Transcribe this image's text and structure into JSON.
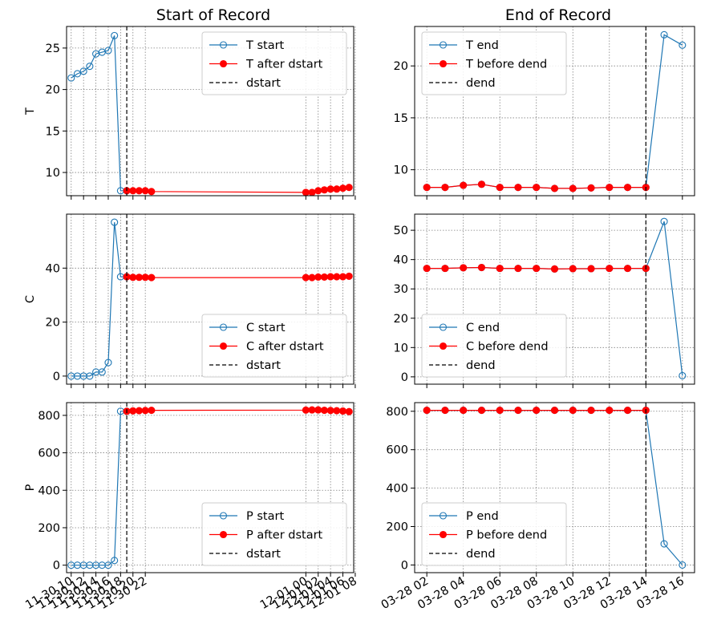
{
  "figure": {
    "col_titles": [
      "Start of Record",
      "End of Record"
    ]
  },
  "chart_data": [
    {
      "type": "line",
      "title": "Start of Record",
      "ylabel": "T",
      "xlabel": "",
      "x_kind": "start",
      "ylim": [
        7.2,
        27.6
      ],
      "yticks": [
        10,
        15,
        20,
        25
      ],
      "grid": true,
      "legend_position": "upper-right",
      "vline": {
        "x": "11-30 19:00",
        "label": "dstart"
      },
      "series": [
        {
          "name": "T start",
          "style": "open-blue",
          "x": [
            "11-30 10:00",
            "11-30 11:00",
            "11-30 12:00",
            "11-30 13:00",
            "11-30 14:00",
            "11-30 15:00",
            "11-30 16:00",
            "11-30 17:00",
            "11-30 18:00",
            "11-30 19:00"
          ],
          "values": [
            21.4,
            21.9,
            22.2,
            22.8,
            24.3,
            24.5,
            24.7,
            26.5,
            7.8,
            7.8
          ]
        },
        {
          "name": "T after dstart",
          "style": "filled-red",
          "x": [
            "11-30 19:00",
            "11-30 20:00",
            "11-30 21:00",
            "11-30 22:00",
            "11-30 23:00",
            "12-01 00:00",
            "12-01 01:00",
            "12-01 02:00",
            "12-01 03:00",
            "12-01 04:00",
            "12-01 05:00",
            "12-01 06:00",
            "12-01 07:00"
          ],
          "values": [
            7.8,
            7.8,
            7.8,
            7.8,
            7.7,
            7.6,
            7.6,
            7.8,
            7.9,
            8.0,
            8.0,
            8.1,
            8.2
          ]
        }
      ]
    },
    {
      "type": "line",
      "title": "End of Record",
      "ylabel": "",
      "xlabel": "",
      "x_kind": "end",
      "ylim": [
        7.5,
        23.8
      ],
      "yticks": [
        10,
        15,
        20
      ],
      "grid": true,
      "legend_position": "upper-left",
      "vline": {
        "x": "03-28 14:00",
        "label": "dend"
      },
      "series": [
        {
          "name": "T end",
          "style": "open-blue",
          "x": [
            "03-28 02:00",
            "03-28 03:00",
            "03-28 04:00",
            "03-28 05:00",
            "03-28 06:00",
            "03-28 07:00",
            "03-28 08:00",
            "03-28 09:00",
            "03-28 10:00",
            "03-28 11:00",
            "03-28 12:00",
            "03-28 13:00",
            "03-28 14:00",
            "03-28 15:00",
            "03-28 16:00"
          ],
          "values": [
            8.3,
            8.3,
            8.5,
            8.6,
            8.3,
            8.3,
            8.3,
            8.2,
            8.2,
            8.25,
            8.3,
            8.3,
            8.3,
            23.0,
            22.0
          ]
        },
        {
          "name": "T before dend",
          "style": "filled-red",
          "x": [
            "03-28 02:00",
            "03-28 03:00",
            "03-28 04:00",
            "03-28 05:00",
            "03-28 06:00",
            "03-28 07:00",
            "03-28 08:00",
            "03-28 09:00",
            "03-28 10:00",
            "03-28 11:00",
            "03-28 12:00",
            "03-28 13:00",
            "03-28 14:00"
          ],
          "values": [
            8.3,
            8.3,
            8.5,
            8.6,
            8.3,
            8.3,
            8.3,
            8.2,
            8.2,
            8.25,
            8.3,
            8.3,
            8.3
          ]
        }
      ]
    },
    {
      "type": "line",
      "title": "",
      "ylabel": "C",
      "xlabel": "",
      "x_kind": "start",
      "ylim": [
        -3,
        60
      ],
      "yticks": [
        0,
        20,
        40
      ],
      "grid": true,
      "legend_position": "lower-right",
      "vline": {
        "x": "11-30 19:00",
        "label": "dstart"
      },
      "series": [
        {
          "name": "C start",
          "style": "open-blue",
          "x": [
            "11-30 10:00",
            "11-30 11:00",
            "11-30 12:00",
            "11-30 13:00",
            "11-30 14:00",
            "11-30 15:00",
            "11-30 16:00",
            "11-30 17:00",
            "11-30 18:00",
            "11-30 19:00"
          ],
          "values": [
            0,
            0,
            0,
            0,
            1.5,
            1.5,
            5,
            57,
            36.8,
            36.8
          ]
        },
        {
          "name": "C after dstart",
          "style": "filled-red",
          "x": [
            "11-30 19:00",
            "11-30 20:00",
            "11-30 21:00",
            "11-30 22:00",
            "11-30 23:00",
            "12-01 00:00",
            "12-01 01:00",
            "12-01 02:00",
            "12-01 03:00",
            "12-01 04:00",
            "12-01 05:00",
            "12-01 06:00",
            "12-01 07:00"
          ],
          "values": [
            36.8,
            36.6,
            36.6,
            36.6,
            36.5,
            36.5,
            36.5,
            36.7,
            36.7,
            36.8,
            36.8,
            36.8,
            37.0
          ]
        }
      ]
    },
    {
      "type": "line",
      "title": "",
      "ylabel": "",
      "xlabel": "",
      "x_kind": "end",
      "ylim": [
        -2.5,
        55.5
      ],
      "yticks": [
        0,
        10,
        20,
        30,
        40,
        50
      ],
      "grid": true,
      "legend_position": "lower-left",
      "vline": {
        "x": "03-28 14:00",
        "label": "dend"
      },
      "series": [
        {
          "name": "C end",
          "style": "open-blue",
          "x": [
            "03-28 02:00",
            "03-28 03:00",
            "03-28 04:00",
            "03-28 05:00",
            "03-28 06:00",
            "03-28 07:00",
            "03-28 08:00",
            "03-28 09:00",
            "03-28 10:00",
            "03-28 11:00",
            "03-28 12:00",
            "03-28 13:00",
            "03-28 14:00",
            "03-28 15:00",
            "03-28 16:00"
          ],
          "values": [
            37.0,
            37.0,
            37.2,
            37.3,
            37.0,
            37.0,
            37.0,
            36.8,
            36.9,
            36.9,
            37.0,
            37.0,
            37.0,
            53.0,
            0.4
          ]
        },
        {
          "name": "C before dend",
          "style": "filled-red",
          "x": [
            "03-28 02:00",
            "03-28 03:00",
            "03-28 04:00",
            "03-28 05:00",
            "03-28 06:00",
            "03-28 07:00",
            "03-28 08:00",
            "03-28 09:00",
            "03-28 10:00",
            "03-28 11:00",
            "03-28 12:00",
            "03-28 13:00",
            "03-28 14:00"
          ],
          "values": [
            37.0,
            37.0,
            37.2,
            37.3,
            37.0,
            37.0,
            37.0,
            36.8,
            36.9,
            36.9,
            37.0,
            37.0,
            37.0
          ]
        }
      ]
    },
    {
      "type": "line",
      "title": "",
      "ylabel": "P",
      "xlabel": "",
      "x_kind": "start",
      "ylim": [
        -40,
        868
      ],
      "yticks": [
        0,
        200,
        400,
        600,
        800
      ],
      "grid": true,
      "legend_position": "lower-right",
      "vline": {
        "x": "11-30 19:00",
        "label": "dstart"
      },
      "series": [
        {
          "name": "P start",
          "style": "open-blue",
          "x": [
            "11-30 10:00",
            "11-30 11:00",
            "11-30 12:00",
            "11-30 13:00",
            "11-30 14:00",
            "11-30 15:00",
            "11-30 16:00",
            "11-30 17:00",
            "11-30 18:00",
            "11-30 19:00"
          ],
          "values": [
            0,
            0,
            0,
            0,
            0,
            0,
            0,
            25,
            822,
            822
          ]
        },
        {
          "name": "P after dstart",
          "style": "filled-red",
          "x": [
            "11-30 19:00",
            "11-30 20:00",
            "11-30 21:00",
            "11-30 22:00",
            "11-30 23:00",
            "12-01 00:00",
            "12-01 01:00",
            "12-01 02:00",
            "12-01 03:00",
            "12-01 04:00",
            "12-01 05:00",
            "12-01 06:00",
            "12-01 07:00"
          ],
          "values": [
            822,
            824,
            825,
            826,
            827,
            828,
            829,
            829,
            827,
            826,
            825,
            823,
            820
          ]
        }
      ]
    },
    {
      "type": "line",
      "title": "",
      "ylabel": "",
      "xlabel": "",
      "x_kind": "end",
      "ylim": [
        -40,
        845
      ],
      "yticks": [
        0,
        200,
        400,
        600,
        800
      ],
      "grid": true,
      "legend_position": "lower-left",
      "vline": {
        "x": "03-28 14:00",
        "label": "dend"
      },
      "series": [
        {
          "name": "P end",
          "style": "open-blue",
          "x": [
            "03-28 02:00",
            "03-28 03:00",
            "03-28 04:00",
            "03-28 05:00",
            "03-28 06:00",
            "03-28 07:00",
            "03-28 08:00",
            "03-28 09:00",
            "03-28 10:00",
            "03-28 11:00",
            "03-28 12:00",
            "03-28 13:00",
            "03-28 14:00",
            "03-28 15:00",
            "03-28 16:00"
          ],
          "values": [
            805,
            805,
            805,
            805,
            805,
            805,
            805,
            805,
            805,
            805,
            805,
            805,
            805,
            110,
            0
          ]
        },
        {
          "name": "P before dend",
          "style": "filled-red",
          "x": [
            "03-28 02:00",
            "03-28 03:00",
            "03-28 04:00",
            "03-28 05:00",
            "03-28 06:00",
            "03-28 07:00",
            "03-28 08:00",
            "03-28 09:00",
            "03-28 10:00",
            "03-28 11:00",
            "03-28 12:00",
            "03-28 13:00",
            "03-28 14:00"
          ],
          "values": [
            805,
            805,
            805,
            805,
            805,
            805,
            805,
            805,
            805,
            805,
            805,
            805,
            805
          ]
        }
      ]
    }
  ],
  "x_axes": {
    "start": {
      "range": [
        "11-30 09:15",
        "12-01 07:45"
      ],
      "ticks": [
        "11-30 10:00",
        "11-30 12:00",
        "11-30 14:00",
        "11-30 16:00",
        "11-30 18:00",
        "11-30 20:00",
        "11-30 22:00",
        "12-01 00:00",
        "12-01 02:00",
        "12-01 04:00",
        "12-01 06:00",
        "12-01 08:00"
      ],
      "tick_labels": [
        "11-30 10",
        "11-30 12",
        "11-30 14",
        "11-30 16",
        "11-30 18",
        "11-30 20",
        "11-30 22",
        "12-01 00",
        "12-01 02",
        "12-01 04",
        "12-01 06",
        "12-01 08"
      ]
    },
    "end": {
      "range": [
        "03-28 01:20",
        "03-28 16:40"
      ],
      "ticks": [
        "03-28 02:00",
        "03-28 04:00",
        "03-28 06:00",
        "03-28 08:00",
        "03-28 10:00",
        "03-28 12:00",
        "03-28 14:00",
        "03-28 16:00"
      ],
      "tick_labels": [
        "03-28 02",
        "03-28 04",
        "03-28 06",
        "03-28 08",
        "03-28 10",
        "03-28 12",
        "03-28 14",
        "03-28 16"
      ]
    }
  },
  "colors": {
    "blue": "#1f77b4",
    "red": "#ff0000",
    "grid": "#808080",
    "frame": "#000000",
    "legend_border": "#cccccc"
  }
}
